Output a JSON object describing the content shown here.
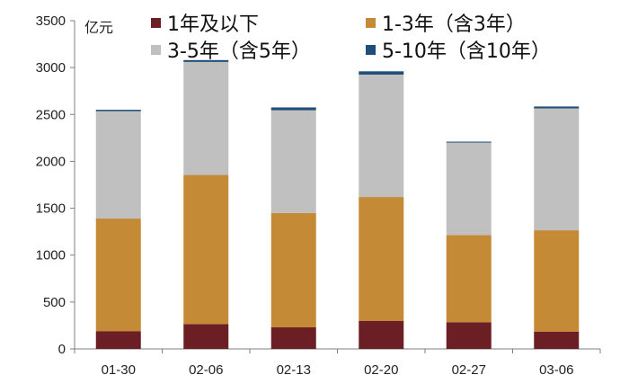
{
  "chart_data": {
    "type": "bar",
    "stacked": true,
    "categories": [
      "01-30",
      "02-06",
      "02-13",
      "02-20",
      "02-27",
      "03-06"
    ],
    "series": [
      {
        "name": "1年及以下",
        "color": "#6b1e23",
        "values": [
          190,
          265,
          230,
          300,
          285,
          185
        ]
      },
      {
        "name": "1-3年（含3年）",
        "color": "#c58a36",
        "values": [
          1200,
          1590,
          1220,
          1320,
          930,
          1080
        ]
      },
      {
        "name": "3-5年（含5年）",
        "color": "#c0c0c0",
        "values": [
          1145,
          1205,
          1095,
          1305,
          985,
          1300
        ]
      },
      {
        "name": "5-10年（含10年）",
        "color": "#1f4e79",
        "values": [
          15,
          20,
          30,
          35,
          10,
          20
        ]
      }
    ],
    "ylabel": "亿元",
    "ylim": [
      0,
      3500
    ],
    "yticks": [
      0,
      500,
      1000,
      1500,
      2000,
      2500,
      3000,
      3500
    ],
    "grid": false,
    "legend_position": "top"
  }
}
